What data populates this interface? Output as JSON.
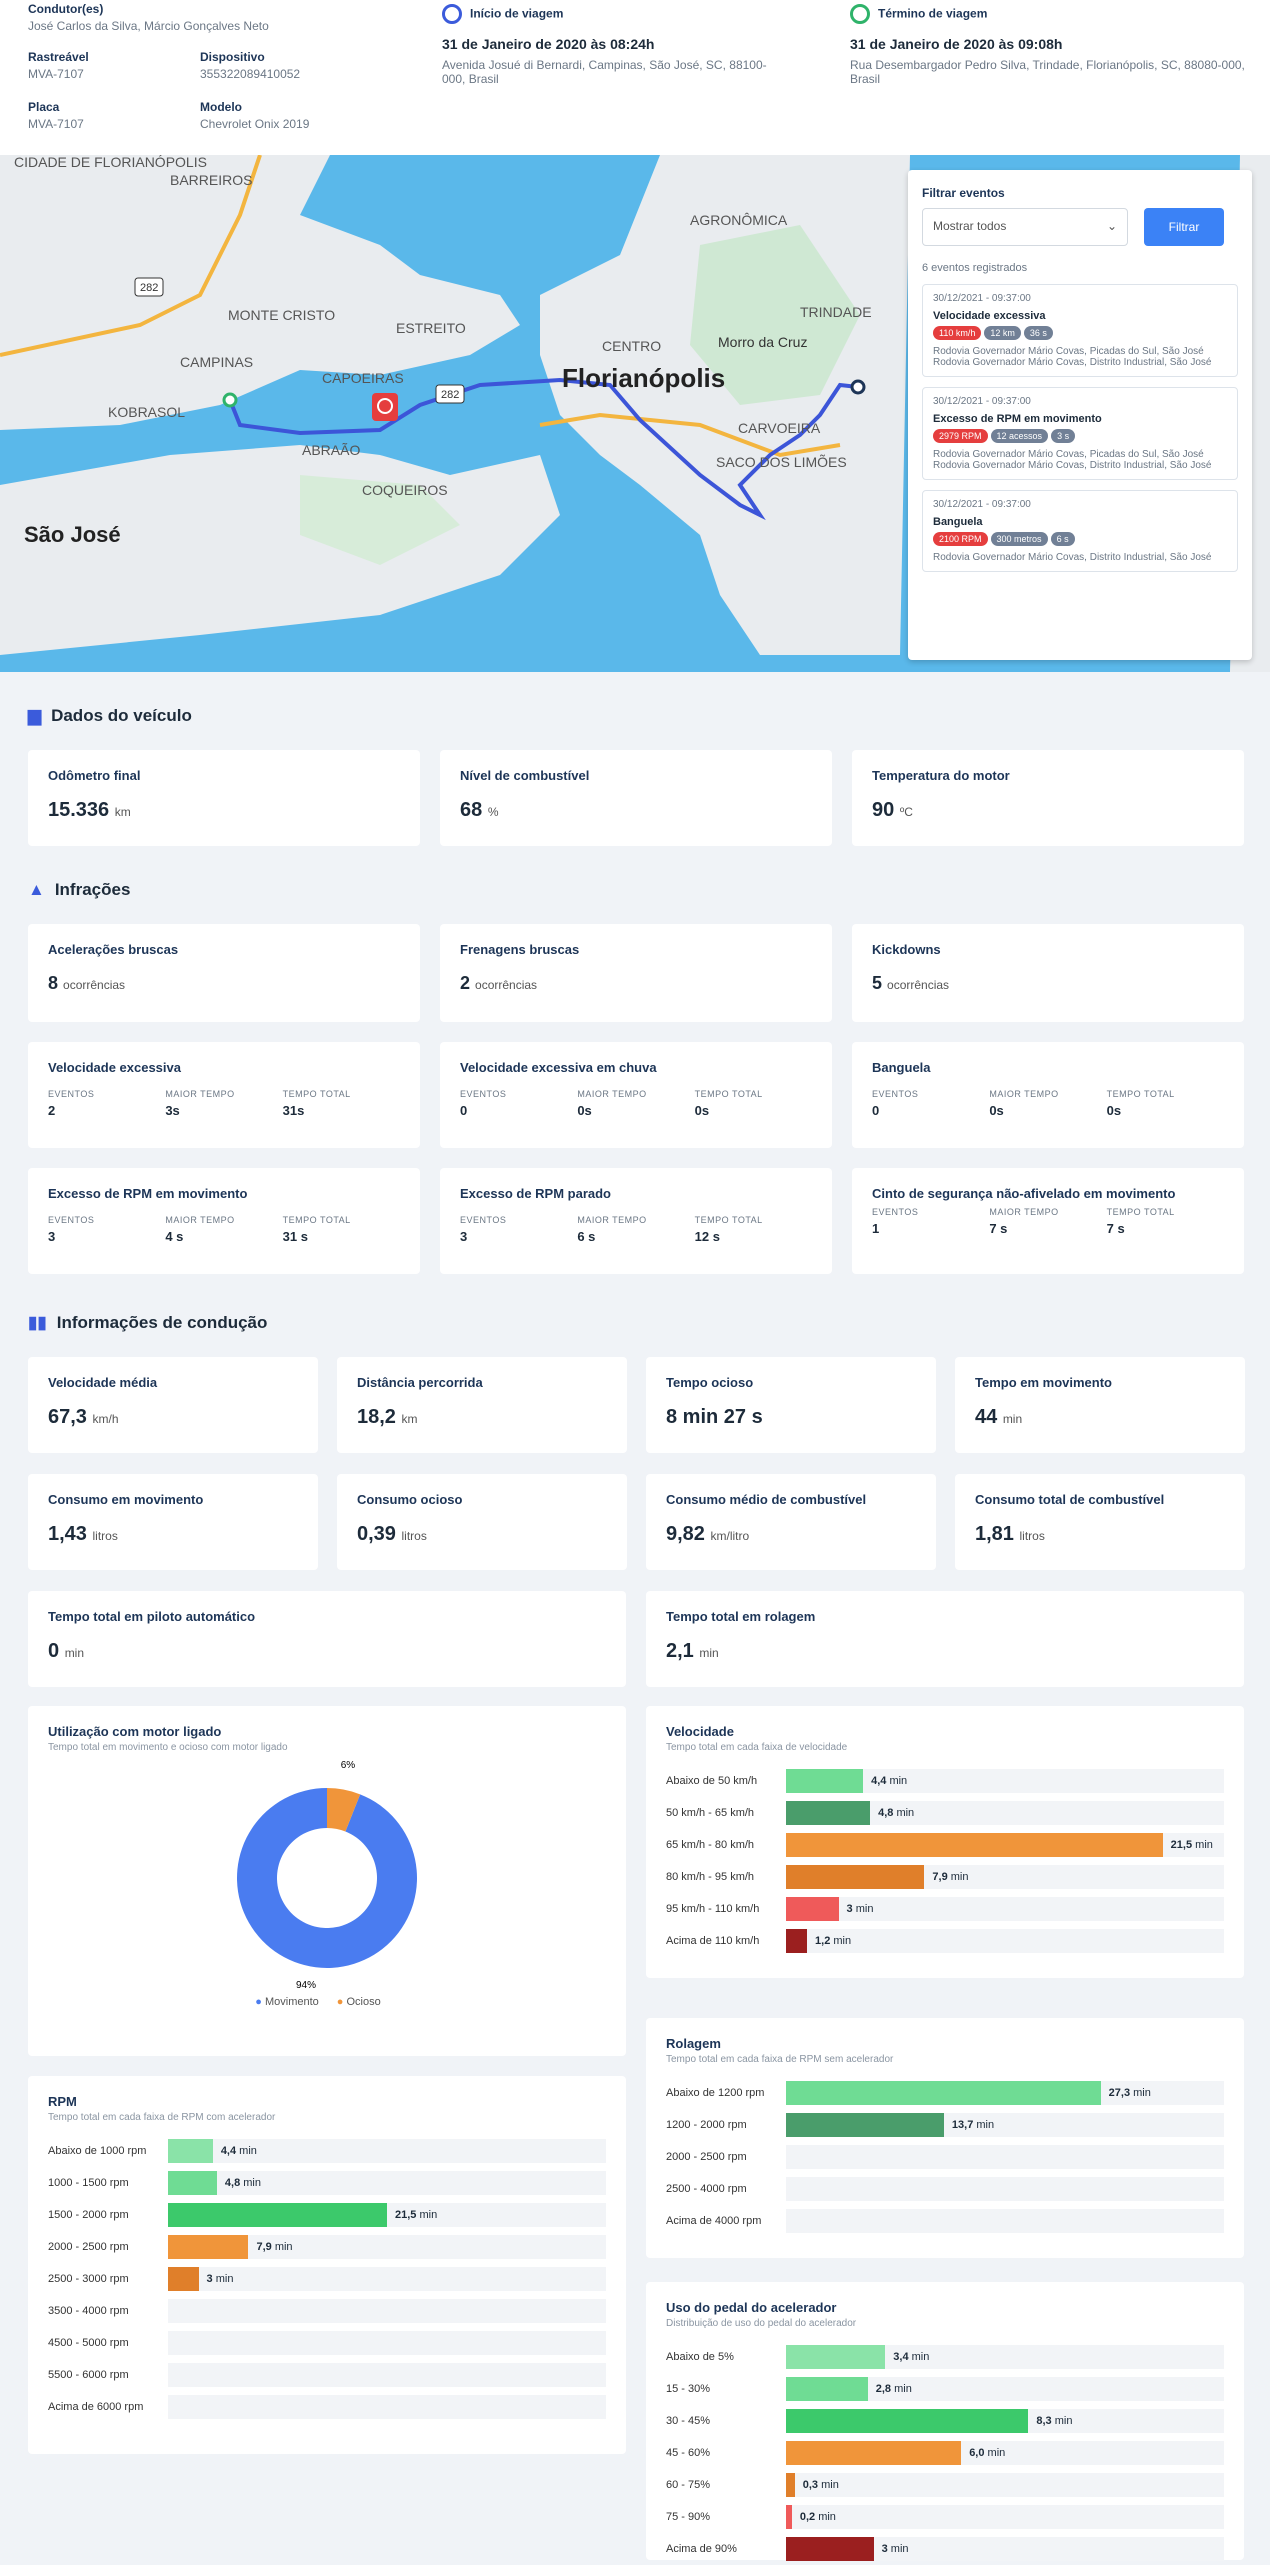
{
  "header": {
    "drivers_label": "Condutor(es)",
    "drivers": "José Carlos da Silva, Márcio Gonçalves Neto",
    "tracker_label": "Rastreável",
    "tracker": "MVA-7107",
    "device_label": "Dispositivo",
    "device": "355322089410052",
    "plate_label": "Placa",
    "plate": "MVA-7107",
    "model_label": "Modelo",
    "model": "Chevrolet Onix 2019",
    "start_label": "Início de viagem",
    "start_date": "31 de Janeiro de 2020 às 08:24h",
    "start_addr": "Avenida Josué di Bernardi, Campinas, São José, SC, 88100-000, Brasil",
    "end_label": "Término de viagem",
    "end_date": "31 de Janeiro de 2020 às 09:08h",
    "end_addr": "Rua Desembargador Pedro Silva, Trindade, Florianópolis, SC, 88080-000, Brasil"
  },
  "map": {
    "labels": [
      "CIDADE DE FLORIANÓPOLIS",
      "BARREIROS",
      "MONTE CRISTO",
      "CAMPINAS",
      "KOBRASOL",
      "ESTREITO",
      "CAPOEIRAS",
      "ABRAÃO",
      "COQUEIROS",
      "Florianópolis",
      "AGRONÔMICA",
      "TRINDADE",
      "CENTRO",
      "Morro da Cruz",
      "CARVOEIRA",
      "SACO DOS LIMÕES",
      "São José"
    ],
    "road_numbers": [
      "282",
      "282"
    ]
  },
  "filter": {
    "label": "Filtrar eventos",
    "select": "Mostrar todos",
    "button": "Filtrar",
    "count": "6 eventos registrados",
    "events": [
      {
        "time": "30/12/2021 - 09:37:00",
        "title": "Velocidade excessiva",
        "pills": [
          {
            "t": "110 km/h",
            "c": "#e53e3e"
          },
          {
            "t": "12 km",
            "c": "#718096"
          },
          {
            "t": "36 s",
            "c": "#718096"
          }
        ],
        "a1": "Rodovia Governador Mário Covas, Picadas do Sul, São José",
        "a2": "Rodovia Governador Mário Covas, Distrito Industrial, São José"
      },
      {
        "time": "30/12/2021 - 09:37:00",
        "title": "Excesso de RPM em movimento",
        "pills": [
          {
            "t": "2979 RPM",
            "c": "#e53e3e"
          },
          {
            "t": "12 acessos",
            "c": "#718096"
          },
          {
            "t": "3 s",
            "c": "#718096"
          }
        ],
        "a1": "Rodovia Governador Mário Covas, Picadas do Sul, São José",
        "a2": "Rodovia Governador Mário Covas, Distrito Industrial, São José"
      },
      {
        "time": "30/12/2021 - 09:37:00",
        "title": "Banguela",
        "pills": [
          {
            "t": "2100 RPM",
            "c": "#e53e3e"
          },
          {
            "t": "300 metros",
            "c": "#718096"
          },
          {
            "t": "6 s",
            "c": "#718096"
          }
        ],
        "a1": "Rodovia Governador Mário Covas, Distrito Industrial, São José",
        "a2": ""
      }
    ]
  },
  "vehicle": {
    "title": "Dados do veículo",
    "cards": [
      {
        "label": "Odômetro final",
        "value": "15.336",
        "unit": "km"
      },
      {
        "label": "Nível de combustível",
        "value": "68",
        "unit": "%"
      },
      {
        "label": "Temperatura do motor",
        "value": "90",
        "unit": "ºC"
      }
    ]
  },
  "infractions": {
    "title": "Infrações",
    "counts": [
      {
        "label": "Acelerações bruscas",
        "value": "8",
        "unit": "ocorrências"
      },
      {
        "label": "Frenagens bruscas",
        "value": "2",
        "unit": "ocorrências"
      },
      {
        "label": "Kickdowns",
        "value": "5",
        "unit": "ocorrências"
      }
    ],
    "cols": [
      "EVENTOS",
      "MAIOR TEMPO",
      "TEMPO TOTAL"
    ],
    "detail": [
      {
        "label": "Velocidade excessiva",
        "v": [
          "2",
          "3s",
          "31s"
        ]
      },
      {
        "label": "Velocidade excessiva em chuva",
        "v": [
          "0",
          "0s",
          "0s"
        ]
      },
      {
        "label": "Banguela",
        "v": [
          "0",
          "0s",
          "0s"
        ]
      },
      {
        "label": "Excesso de RPM em movimento",
        "v": [
          "3",
          "4 s",
          "31 s"
        ]
      },
      {
        "label": "Excesso de RPM parado",
        "v": [
          "3",
          "6 s",
          "12 s"
        ]
      },
      {
        "label": "Cinto de segurança não-afivelado em movimento",
        "v": [
          "1",
          "7 s",
          "7 s"
        ]
      }
    ]
  },
  "driving": {
    "title": "Informações de condução",
    "row1": [
      {
        "label": "Velocidade média",
        "value": "67,3",
        "unit": "km/h"
      },
      {
        "label": "Distância percorrida",
        "value": "18,2",
        "unit": "km"
      },
      {
        "label": "Tempo ocioso",
        "value": "8 min 27 s",
        "unit": ""
      },
      {
        "label": "Tempo em movimento",
        "value": "44",
        "unit": "min"
      }
    ],
    "row2": [
      {
        "label": "Consumo em movimento",
        "value": "1,43",
        "unit": "litros"
      },
      {
        "label": "Consumo ocioso",
        "value": "0,39",
        "unit": "litros"
      },
      {
        "label": "Consumo médio de combustível",
        "value": "9,82",
        "unit": "km/litro"
      },
      {
        "label": "Consumo total de combustível",
        "value": "1,81",
        "unit": "litros"
      }
    ],
    "row3": [
      {
        "label": "Tempo total em piloto automático",
        "value": "0",
        "unit": "min"
      },
      {
        "label": "Tempo total em rolagem",
        "value": "2,1",
        "unit": "min"
      }
    ]
  },
  "chart_data": [
    {
      "type": "pie",
      "title": "Utilização com motor ligado",
      "subtitle": "Tempo total em movimento e ocioso com motor ligado",
      "slices": [
        {
          "name": "Movimento",
          "value": 94,
          "label": "94%",
          "color": "#4a7cf0"
        },
        {
          "name": "Ocioso",
          "value": 6,
          "label": "6%",
          "color": "#f0953a"
        }
      ]
    },
    {
      "type": "bar",
      "title": "Velocidade",
      "subtitle": "Tempo total em cada faixa de velocidade",
      "unit": "min",
      "categories": [
        "Abaixo de 50 km/h",
        "50 km/h - 65 km/h",
        "65 km/h - 80 km/h",
        "80 km/h - 95 km/h",
        "95 km/h - 110 km/h",
        "Acima de 110 km/h"
      ],
      "values": [
        4.4,
        4.8,
        21.5,
        7.9,
        3,
        1.2
      ],
      "labels": [
        "4,4",
        "4,8",
        "21,5",
        "7,9",
        "3",
        "1,2"
      ],
      "colors": [
        "#6fdc94",
        "#4a9d6b",
        "#f0953a",
        "#e07f2a",
        "#ef5a5a",
        "#9b1f1f"
      ],
      "max": 25
    },
    {
      "type": "bar",
      "title": "RPM",
      "subtitle": "Tempo total em cada faixa de RPM com acelerador",
      "unit": "min",
      "categories": [
        "Abaixo de 1000 rpm",
        "1000 - 1500 rpm",
        "1500 - 2000 rpm",
        "2000 - 2500 rpm",
        "2500 - 3000 rpm",
        "3500 - 4000 rpm",
        "4500 - 5000 rpm",
        "5500 - 6000 rpm",
        "Acima de 6000 rpm"
      ],
      "values": [
        4.4,
        4.8,
        21.5,
        7.9,
        3,
        0,
        0,
        0,
        0
      ],
      "labels": [
        "4,4",
        "4,8",
        "21,5",
        "7,9",
        "3",
        "",
        "",
        "",
        ""
      ],
      "colors": [
        "#8ae3a8",
        "#6fdc94",
        "#3cc96b",
        "#f0953a",
        "#e07f2a",
        "#ccc",
        "#ccc",
        "#ccc",
        "#ccc"
      ],
      "max": 43
    },
    {
      "type": "bar",
      "title": "Rolagem",
      "subtitle": "Tempo total em cada faixa de RPM sem acelerador",
      "unit": "min",
      "categories": [
        "Abaixo de 1200 rpm",
        "1200 - 2000 rpm",
        "2000 - 2500 rpm",
        "2500 - 4000 rpm",
        "Acima de 4000 rpm"
      ],
      "values": [
        27.3,
        13.7,
        0,
        0,
        0
      ],
      "labels": [
        "27,3",
        "13,7",
        "",
        "",
        ""
      ],
      "colors": [
        "#6fdc94",
        "#4a9d6b",
        "#ccc",
        "#ccc",
        "#ccc"
      ],
      "max": 38
    },
    {
      "type": "bar",
      "title": "Uso do pedal do acelerador",
      "subtitle": "Distribuição de uso do pedal do acelerador",
      "unit": "min",
      "categories": [
        "Abaixo de 5%",
        "15 - 30%",
        "30 - 45%",
        "45 - 60%",
        "60 - 75%",
        "75 - 90%",
        "Acima de 90%"
      ],
      "values": [
        3.4,
        2.8,
        8.3,
        6,
        0.3,
        0.2,
        3
      ],
      "labels": [
        "3,4",
        "2,8",
        "8,3",
        "6,0",
        "0,3",
        "0,2",
        "3"
      ],
      "colors": [
        "#8ae3a8",
        "#6fdc94",
        "#3cc96b",
        "#f0953a",
        "#e07f2a",
        "#ef5a5a",
        "#9b1f1f"
      ],
      "max": 15
    }
  ]
}
